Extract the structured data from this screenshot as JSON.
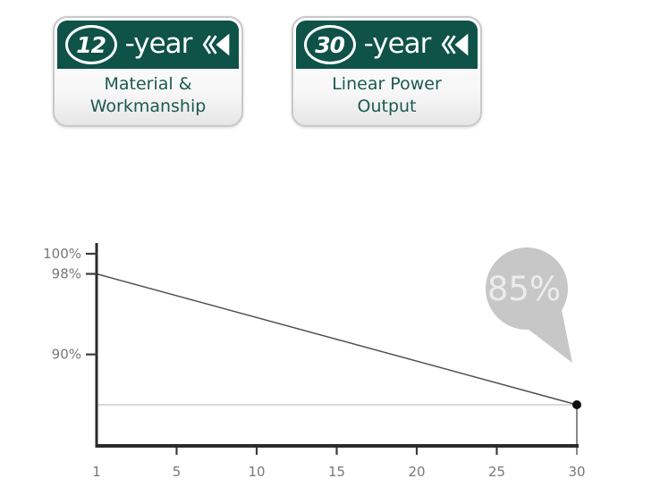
{
  "badges": [
    {
      "number": "12",
      "suffix": "-year",
      "desc_line1": "Material &",
      "desc_line2": "Workmanship"
    },
    {
      "number": "30",
      "suffix": "-year",
      "desc_line1": "Linear Power",
      "desc_line2": "Output"
    }
  ],
  "colors": {
    "badge_green": "#0e5248",
    "badge_desc_text": "#1b5a50",
    "axis_color": "#2b2b2b",
    "tick_color": "#3c3c3c",
    "tick_label_color": "#787878",
    "line_color": "#4f4f4f",
    "drop_line_color": "#6a6a6a",
    "reference_line_color": "#c2c2c2",
    "dot_color": "#0f0f0f",
    "bubble_gray": "#c7c7c7",
    "bubble_text": "#ececec"
  },
  "chart_data": {
    "type": "line",
    "title": "",
    "xlabel": "",
    "ylabel": "",
    "xlim": [
      1,
      30
    ],
    "ylim": [
      85,
      100
    ],
    "grid": false,
    "legend": "none",
    "x_ticks": [
      {
        "value": 1,
        "label": "1"
      },
      {
        "value": 5,
        "label": "5"
      },
      {
        "value": 10,
        "label": "10"
      },
      {
        "value": 15,
        "label": "15"
      },
      {
        "value": 20,
        "label": "20"
      },
      {
        "value": 25,
        "label": "25"
      },
      {
        "value": 30,
        "label": "30"
      }
    ],
    "y_ticks": [
      {
        "value": 100,
        "label": "100%"
      },
      {
        "value": 98,
        "label": "98%"
      },
      {
        "value": 90,
        "label": "90%"
      }
    ],
    "series": [
      {
        "name": "linear-power-output",
        "points": [
          {
            "x": 1,
            "y": 98
          },
          {
            "x": 30,
            "y": 85
          }
        ]
      }
    ],
    "reference_line_y": 85,
    "annotation": {
      "label": "85%",
      "x": 30,
      "y": 85
    }
  }
}
